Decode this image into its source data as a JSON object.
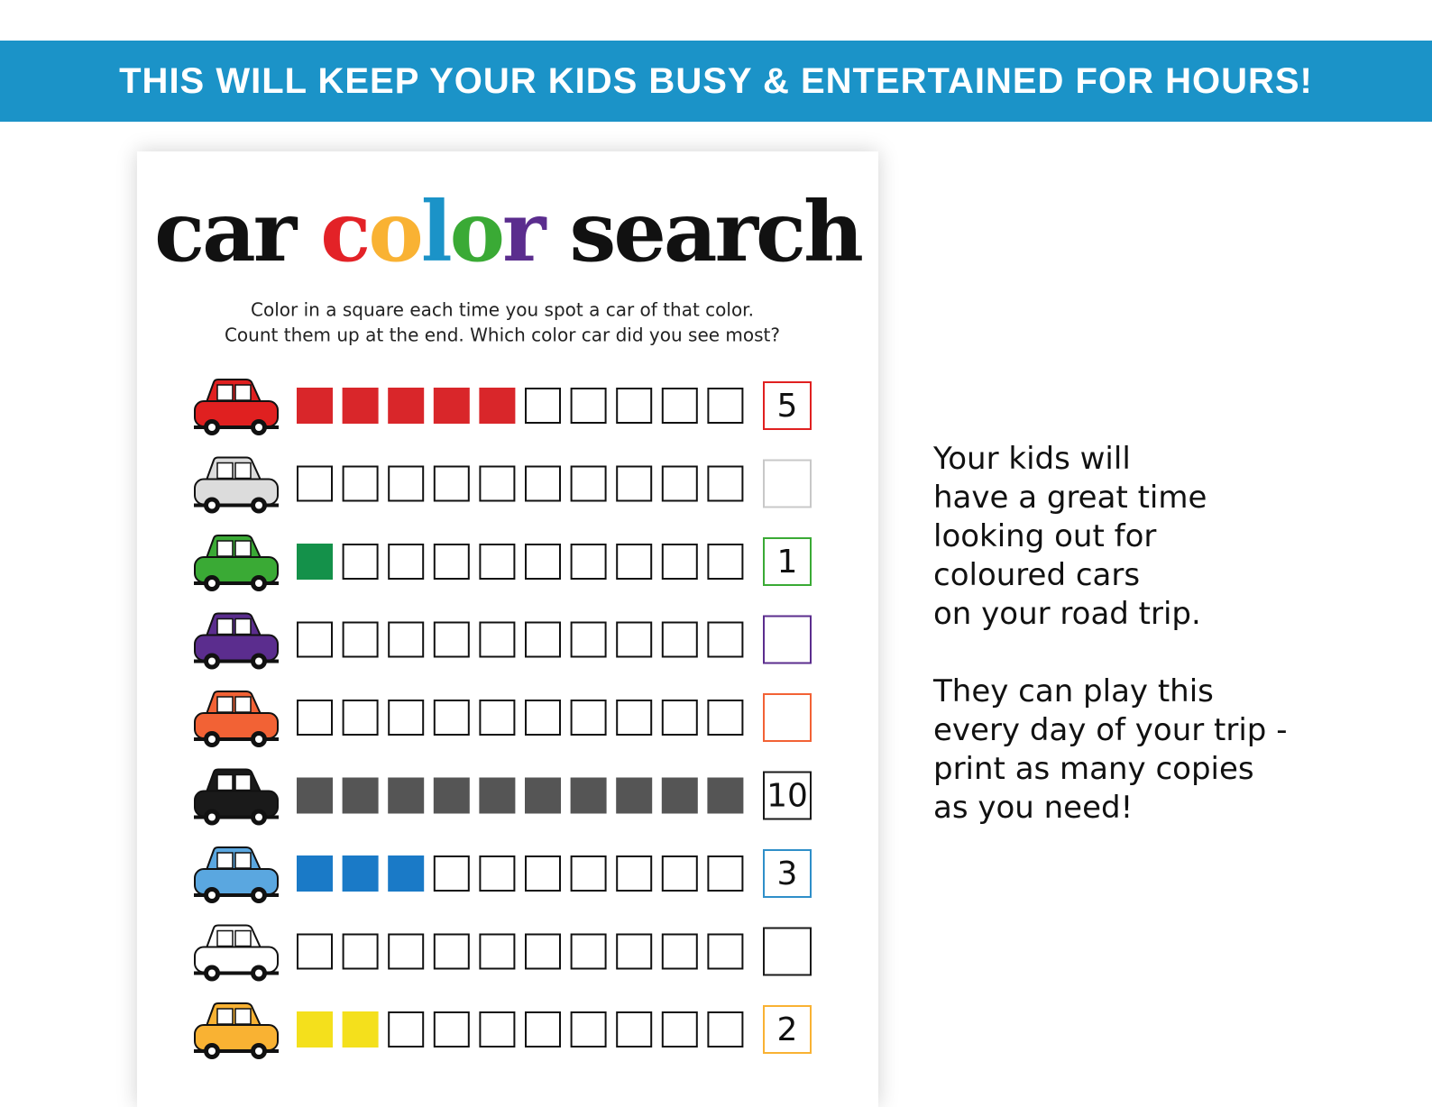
{
  "banner": "THIS WILL KEEP YOUR KIDS BUSY & ENTERTAINED FOR HOURS!",
  "sheet": {
    "title_parts": [
      {
        "text": "car ",
        "color": "#111111"
      },
      {
        "text": "c",
        "color": "#e32227"
      },
      {
        "text": "o",
        "color": "#f9b233"
      },
      {
        "text": "l",
        "color": "#1b93c8"
      },
      {
        "text": "o",
        "color": "#3aaa35"
      },
      {
        "text": "r",
        "color": "#5b2d8e"
      },
      {
        "text": " search",
        "color": "#111111"
      }
    ],
    "instructions": [
      "Color in a square each time you spot a car of that color.",
      "Count them up at the end. Which color car did you see most?"
    ],
    "rows": [
      {
        "car_color": "#e02020",
        "fill_color": "#d9262a",
        "border_color": "#e02020",
        "count": 5
      },
      {
        "car_color": "#dcdcdc",
        "fill_color": "#dcdcdc",
        "border_color": "#c8c8c8",
        "count": null
      },
      {
        "car_color": "#3aaa35",
        "fill_color": "#14914a",
        "border_color": "#3aaa35",
        "count": 1
      },
      {
        "car_color": "#5b2d8e",
        "fill_color": "#5b2d8e",
        "border_color": "#5b2d8e",
        "count": null
      },
      {
        "car_color": "#f26235",
        "fill_color": "#f26235",
        "border_color": "#f26235",
        "count": null
      },
      {
        "car_color": "#1a1a1a",
        "fill_color": "#555555",
        "border_color": "#1a1a1a",
        "count": 10
      },
      {
        "car_color": "#5aa7e0",
        "fill_color": "#1a7ac7",
        "border_color": "#2f8fc9",
        "count": 3
      },
      {
        "car_color": "#ffffff",
        "fill_color": "#ffffff",
        "border_color": "#1a1a1a",
        "count": null
      },
      {
        "car_color": "#f9b233",
        "fill_color": "#f4e01c",
        "border_color": "#f9b233",
        "count": 2
      }
    ]
  },
  "side_text": [
    [
      "Your kids will",
      "have a great time",
      "looking out for",
      "coloured cars",
      "on your road trip."
    ],
    [
      "They can play this",
      "every day of your trip -",
      "print as many copies",
      "as you need!"
    ]
  ]
}
